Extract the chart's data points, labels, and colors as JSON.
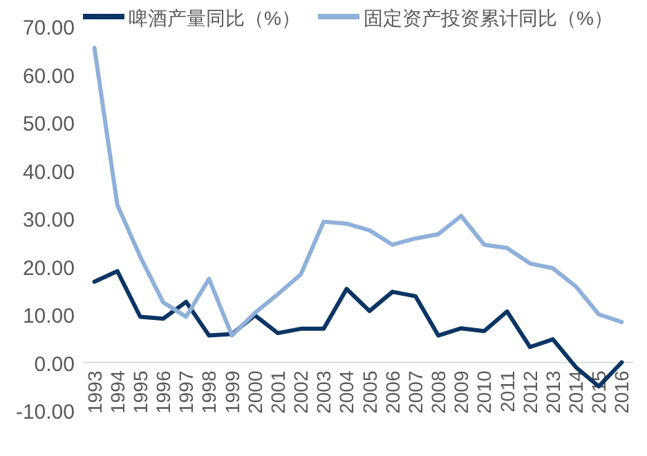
{
  "chart_data": {
    "type": "line",
    "categories": [
      "1993",
      "1994",
      "1995",
      "1996",
      "1997",
      "1998",
      "1999",
      "2000",
      "2001",
      "2002",
      "2003",
      "2004",
      "2005",
      "2006",
      "2007",
      "2008",
      "2009",
      "2010",
      "2011",
      "2012",
      "2013",
      "2014",
      "2015",
      "2016"
    ],
    "series": [
      {
        "name": "啤酒产量同比（%）",
        "color": "#0b3563",
        "values": [
          16.8,
          19.0,
          9.5,
          9.1,
          12.6,
          5.6,
          5.9,
          9.8,
          6.1,
          7.0,
          7.0,
          15.3,
          10.7,
          14.7,
          13.8,
          5.6,
          7.1,
          6.5,
          10.6,
          3.2,
          4.8,
          -1.0,
          -5.0,
          0.0
        ]
      },
      {
        "name": "固定资产投资累计同比（%）",
        "color": "#8fb0d9",
        "values": [
          65.5,
          32.8,
          22.0,
          12.5,
          9.5,
          17.4,
          5.6,
          10.3,
          14.2,
          18.3,
          29.3,
          28.9,
          27.5,
          24.5,
          25.8,
          26.7,
          30.5,
          24.5,
          23.8,
          20.6,
          19.6,
          15.8,
          10.0,
          8.4
        ]
      }
    ],
    "ylim": [
      -10,
      70
    ],
    "yticks": [
      {
        "value": -10,
        "label": "-10.00"
      },
      {
        "value": 0,
        "label": "0.00"
      },
      {
        "value": 10,
        "label": "10.00"
      },
      {
        "value": 20,
        "label": "20.00"
      },
      {
        "value": 30,
        "label": "30.00"
      },
      {
        "value": 40,
        "label": "40.00"
      },
      {
        "value": 50,
        "label": "50.00"
      },
      {
        "value": 60,
        "label": "60.00"
      },
      {
        "value": 70,
        "label": "70.00"
      }
    ],
    "grid": false,
    "legend": "top",
    "marker": "none",
    "line_style": "solid"
  }
}
